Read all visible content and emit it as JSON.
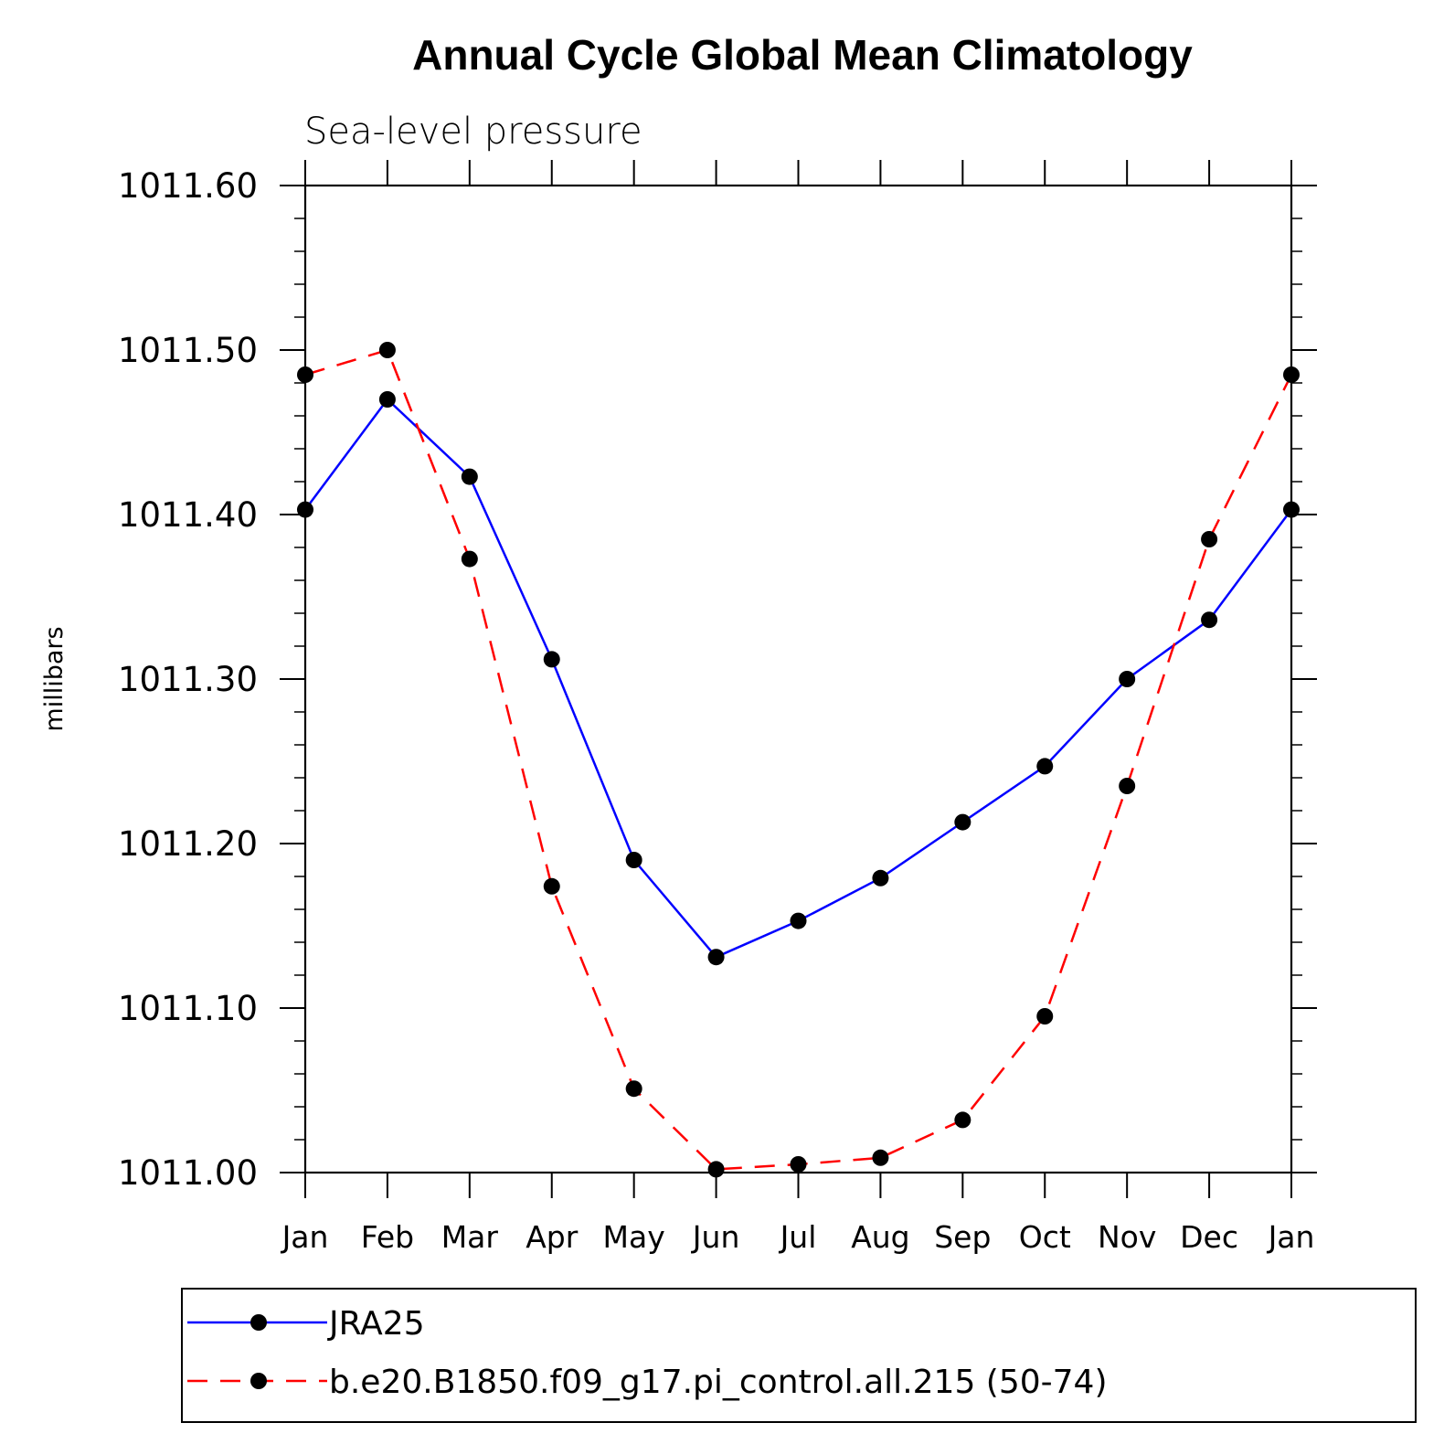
{
  "chart_data": {
    "type": "line",
    "title": "Annual Cycle Global Mean Climatology",
    "subtitle": "Sea-level pressure",
    "xlabel": "",
    "ylabel": "millibars",
    "categories": [
      "Jan",
      "Feb",
      "Mar",
      "Apr",
      "May",
      "Jun",
      "Jul",
      "Aug",
      "Sep",
      "Oct",
      "Nov",
      "Dec",
      "Jan"
    ],
    "ylim": [
      1011.0,
      1011.6
    ],
    "yticks": [
      "1011.00",
      "1011.10",
      "1011.20",
      "1011.30",
      "1011.40",
      "1011.50",
      "1011.60"
    ],
    "ytick_values": [
      1011.0,
      1011.1,
      1011.2,
      1011.3,
      1011.4,
      1011.5,
      1011.6
    ],
    "minor_tick_step": 0.02,
    "grid": false,
    "legend_position": "bottom",
    "series": [
      {
        "name": "JRA25",
        "color": "#0000ff",
        "style": "solid",
        "marker": "circle",
        "values": [
          1011.403,
          1011.47,
          1011.423,
          1011.312,
          1011.19,
          1011.131,
          1011.153,
          1011.179,
          1011.213,
          1011.247,
          1011.3,
          1011.336,
          1011.403
        ]
      },
      {
        "name": "b.e20.B1850.f09_g17.pi_control.all.215 (50-74)",
        "color": "#ff0000",
        "style": "dashed",
        "marker": "circle",
        "values": [
          1011.485,
          1011.5,
          1011.373,
          1011.174,
          1011.051,
          1011.002,
          1011.005,
          1011.009,
          1011.032,
          1011.095,
          1011.235,
          1011.385,
          1011.485
        ]
      }
    ]
  }
}
